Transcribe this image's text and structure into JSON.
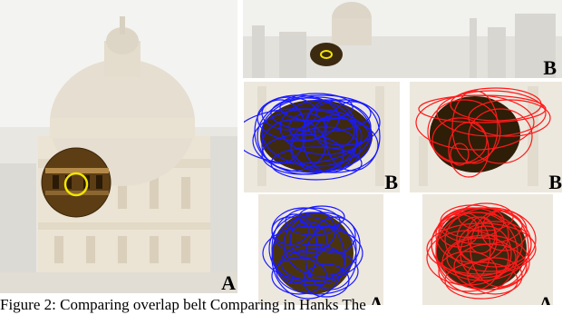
{
  "figure": {
    "caption": "Figure 2: Comparing overlap belt Comparing in Hanks The"
  },
  "panels": [
    {
      "id": "left-large",
      "label": "A"
    },
    {
      "id": "top-wide",
      "label": "B"
    },
    {
      "id": "mid-blue",
      "label": "B"
    },
    {
      "id": "mid-red",
      "label": "B"
    },
    {
      "id": "bottom-blue",
      "label": "A"
    },
    {
      "id": "bottom-red",
      "label": "A"
    }
  ],
  "colors": {
    "highlight": "#f2e600",
    "blue": "#1a1aff",
    "red": "#ff1a1a",
    "faded_building": "#e8e2d6",
    "sky": "#f4f4f0"
  }
}
